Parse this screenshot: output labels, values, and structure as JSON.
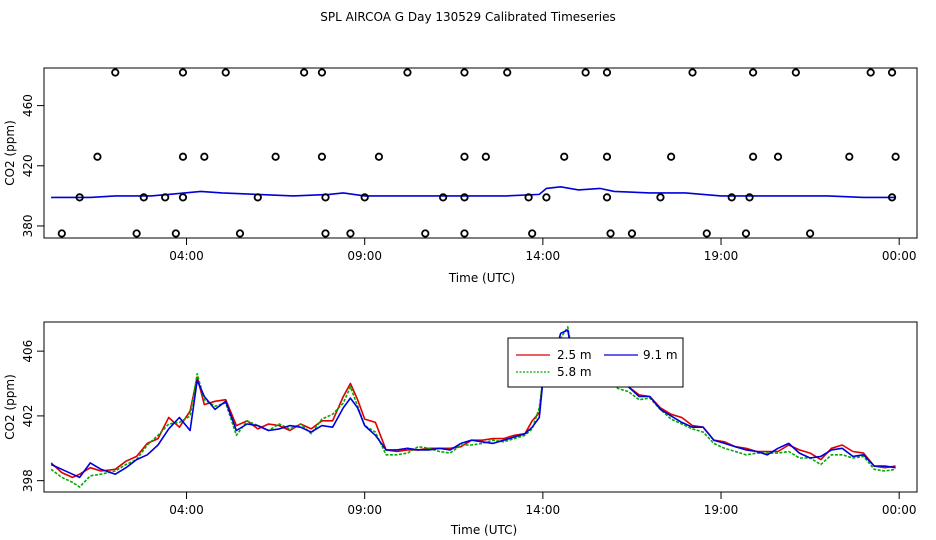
{
  "title": "SPL AIRCOA G  Day 130529  Calibrated Timeseries",
  "colors": {
    "s1": "#dd0000",
    "s2": "#00aa00",
    "s3": "#0000dd",
    "axis": "#000000"
  },
  "chart_data": [
    {
      "type": "line",
      "panel": "top",
      "xlabel": "Time (UTC)",
      "ylabel": "CO2 (ppm)",
      "xlim": [
        0,
        24.5
      ],
      "ylim": [
        372,
        485
      ],
      "x_ticks": [
        {
          "v": 4,
          "label": "04:00"
        },
        {
          "v": 9,
          "label": "09:00"
        },
        {
          "v": 14,
          "label": "14:00"
        },
        {
          "v": 19,
          "label": "19:00"
        },
        {
          "v": 24,
          "label": "00:00"
        }
      ],
      "y_ticks": [
        {
          "v": 380,
          "label": "380"
        },
        {
          "v": 420,
          "label": "420"
        },
        {
          "v": 460,
          "label": "460"
        }
      ],
      "series": [
        {
          "name": "line",
          "color_key": "s3",
          "x": [
            0.2,
            1.3,
            2,
            3,
            3.5,
            4.4,
            5,
            6,
            7,
            8,
            8.4,
            9,
            10,
            11,
            12,
            13,
            13.9,
            14.1,
            14.5,
            15,
            15.6,
            16,
            17,
            18,
            19,
            20,
            21,
            22,
            23,
            23.9
          ],
          "values": [
            399,
            399,
            400,
            400,
            401,
            403,
            402,
            401,
            400,
            401,
            402,
            400,
            400,
            400,
            400,
            400,
            401,
            405,
            406,
            404,
            405,
            403,
            402,
            402,
            400,
            400,
            400,
            400,
            399,
            399
          ]
        }
      ],
      "points": {
        "x": [
          2,
          3.9,
          5.1,
          7.3,
          7.8,
          10.2,
          11.8,
          13,
          15.2,
          15.8,
          18.2,
          19.9,
          21.1,
          23.2,
          23.8,
          1.5,
          3.9,
          4.5,
          6.5,
          7.8,
          9.4,
          11.8,
          12.4,
          14.6,
          15.8,
          17.6,
          19.9,
          20.6,
          22.6,
          23.9,
          1,
          2.8,
          3.4,
          3.9,
          6,
          7.9,
          9,
          11.2,
          11.8,
          13.6,
          14.1,
          15.8,
          17.3,
          19.3,
          19.8,
          23.8,
          0.5,
          2.6,
          3.7,
          5.5,
          7.9,
          8.6,
          10.7,
          11.8,
          13.7,
          15.9,
          16.5,
          18.6,
          19.7,
          21.5
        ],
        "values": [
          482,
          482,
          482,
          482,
          482,
          482,
          482,
          482,
          482,
          482,
          482,
          482,
          482,
          482,
          482,
          426,
          426,
          426,
          426,
          426,
          426,
          426,
          426,
          426,
          426,
          426,
          426,
          426,
          426,
          426,
          399,
          399,
          399,
          399,
          399,
          399,
          399,
          399,
          399,
          399,
          399,
          399,
          399,
          399,
          399,
          399,
          375,
          375,
          375,
          375,
          375,
          375,
          375,
          375,
          375,
          375,
          375,
          375,
          375,
          375
        ]
      }
    },
    {
      "type": "line",
      "panel": "bottom",
      "xlabel": "Time (UTC)",
      "ylabel": "CO2 (ppm)",
      "xlim": [
        0,
        24.5
      ],
      "ylim": [
        397.3,
        407.8
      ],
      "x_ticks": [
        {
          "v": 4,
          "label": "04:00"
        },
        {
          "v": 9,
          "label": "09:00"
        },
        {
          "v": 14,
          "label": "14:00"
        },
        {
          "v": 19,
          "label": "19:00"
        },
        {
          "v": 24,
          "label": "00:00"
        }
      ],
      "y_ticks": [
        {
          "v": 398,
          "label": "398"
        },
        {
          "v": 402,
          "label": "402"
        },
        {
          "v": 406,
          "label": "406"
        }
      ],
      "legend": {
        "position": "top-center",
        "labels": [
          "2.5 m",
          "5.8 m",
          "9.1 m"
        ]
      },
      "x": [
        0.2,
        0.5,
        0.8,
        1.0,
        1.3,
        1.6,
        2.0,
        2.3,
        2.6,
        2.9,
        3.2,
        3.5,
        3.8,
        4.1,
        4.3,
        4.5,
        4.8,
        5.1,
        5.4,
        5.7,
        6.0,
        6.3,
        6.6,
        6.9,
        7.2,
        7.5,
        7.8,
        8.1,
        8.4,
        8.6,
        8.8,
        9.0,
        9.3,
        9.6,
        9.9,
        10.2,
        10.5,
        10.8,
        11.1,
        11.4,
        11.7,
        12.0,
        12.3,
        12.6,
        12.9,
        13.2,
        13.5,
        13.7,
        13.9,
        14.1,
        14.3,
        14.5,
        14.7,
        14.9,
        15.1,
        15.3,
        15.5,
        15.7,
        15.9,
        16.1,
        16.4,
        16.7,
        17.0,
        17.3,
        17.6,
        17.9,
        18.2,
        18.5,
        18.8,
        19.1,
        19.4,
        19.7,
        20.0,
        20.3,
        20.6,
        20.9,
        21.2,
        21.5,
        21.8,
        22.1,
        22.4,
        22.7,
        23.0,
        23.3,
        23.6,
        23.9
      ],
      "series": [
        {
          "name": "2.5 m",
          "color_key": "s1",
          "values": [
            399.1,
            398.5,
            398.2,
            398.4,
            398.8,
            398.6,
            398.7,
            399.2,
            399.5,
            400.3,
            400.6,
            401.9,
            401.3,
            402.3,
            404.4,
            402.7,
            402.9,
            403.0,
            401.4,
            401.7,
            401.2,
            401.5,
            401.4,
            401.1,
            401.5,
            401.2,
            401.7,
            401.7,
            403.2,
            404.0,
            403.0,
            401.8,
            401.6,
            399.9,
            399.8,
            399.9,
            399.9,
            400.0,
            400.0,
            400.0,
            400.1,
            400.5,
            400.5,
            400.6,
            400.6,
            400.8,
            400.9,
            401.7,
            402.2,
            406.3,
            405.8,
            406.5,
            406.4,
            405.1,
            404.8,
            404.9,
            405.2,
            405.8,
            404.6,
            404.0,
            403.8,
            403.3,
            403.2,
            402.5,
            402.1,
            401.9,
            401.4,
            401.3,
            400.5,
            400.4,
            400.1,
            400.0,
            399.8,
            399.8,
            399.8,
            400.2,
            399.9,
            399.7,
            399.3,
            400.0,
            400.2,
            399.8,
            399.7,
            398.9,
            398.8,
            398.9
          ]
        },
        {
          "name": "5.8 m",
          "color_key": "s2",
          "values": [
            398.7,
            398.2,
            397.9,
            397.6,
            398.3,
            398.4,
            398.6,
            399.0,
            399.3,
            400.2,
            400.8,
            401.5,
            401.6,
            402.0,
            404.6,
            403.0,
            402.6,
            402.8,
            400.8,
            401.7,
            401.4,
            401.1,
            401.5,
            401.2,
            401.5,
            400.9,
            401.8,
            402.1,
            402.8,
            403.8,
            402.6,
            401.4,
            401.0,
            399.6,
            399.6,
            399.7,
            400.1,
            400.0,
            399.8,
            399.7,
            400.2,
            400.2,
            400.3,
            400.5,
            400.4,
            400.6,
            400.8,
            401.2,
            402.5,
            406.0,
            406.0,
            406.8,
            407.5,
            404.8,
            405.0,
            404.3,
            404.6,
            405.3,
            404.3,
            403.7,
            403.5,
            403.0,
            403.1,
            402.4,
            401.8,
            401.5,
            401.2,
            401.0,
            400.3,
            400.0,
            399.8,
            399.6,
            399.7,
            399.7,
            399.7,
            399.8,
            399.4,
            399.4,
            399.0,
            399.6,
            399.6,
            399.4,
            399.5,
            398.7,
            398.6,
            398.7
          ]
        },
        {
          "name": "9.1 m",
          "color_key": "s3",
          "values": [
            399.0,
            398.7,
            398.4,
            398.2,
            399.1,
            398.7,
            398.4,
            398.8,
            399.3,
            399.6,
            400.2,
            401.2,
            401.9,
            401.1,
            404.2,
            403.2,
            402.4,
            402.9,
            401.1,
            401.5,
            401.4,
            401.1,
            401.2,
            401.4,
            401.3,
            401.0,
            401.4,
            401.3,
            402.5,
            403.1,
            402.5,
            401.4,
            400.8,
            399.9,
            399.9,
            400.0,
            399.9,
            399.9,
            400.0,
            399.9,
            400.3,
            400.5,
            400.4,
            400.3,
            400.5,
            400.7,
            400.9,
            401.3,
            401.9,
            406.4,
            405.6,
            407.1,
            407.3,
            404.8,
            405.5,
            404.5,
            404.8,
            405.9,
            404.8,
            404.0,
            403.8,
            403.2,
            403.2,
            402.4,
            402.0,
            401.6,
            401.3,
            401.3,
            400.5,
            400.3,
            400.1,
            399.9,
            399.8,
            399.6,
            400.0,
            400.3,
            399.7,
            399.4,
            399.5,
            399.9,
            400.0,
            399.5,
            399.6,
            398.9,
            398.9,
            398.8
          ]
        }
      ]
    }
  ]
}
